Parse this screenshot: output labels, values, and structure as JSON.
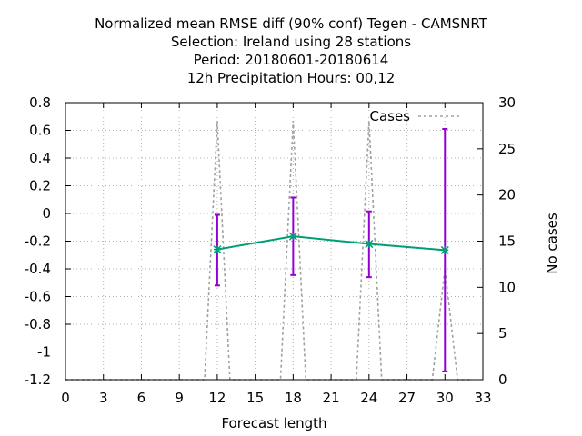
{
  "chart_data": {
    "type": "line",
    "title_lines": [
      "Normalized mean RMSE diff (90% conf) Tegen - CAMSNRT",
      "Selection: Ireland using    28 stations",
      "Period: 20180601-20180614",
      "12h Precipitation   Hours:  00,12"
    ],
    "xlabel": "Forecast length",
    "ylabel": "",
    "y2label": "No cases",
    "xlim": [
      0,
      33
    ],
    "ylim": [
      -1.2,
      0.8
    ],
    "y2lim": [
      0,
      30
    ],
    "xticks": [
      0,
      3,
      6,
      9,
      12,
      15,
      18,
      21,
      24,
      27,
      30,
      33
    ],
    "yticks": [
      -1.2,
      -1,
      -0.8,
      -0.6,
      -0.4,
      -0.2,
      0,
      0.2,
      0.4,
      0.6,
      0.8
    ],
    "ytick_labels": [
      "-1.2",
      "-1",
      "-0.8",
      "-0.6",
      "-0.4",
      "-0.2",
      "0",
      "0.2",
      "0.4",
      "0.6",
      "0.8"
    ],
    "y2ticks": [
      0,
      5,
      10,
      15,
      20,
      25,
      30
    ],
    "grid": true,
    "legend_position": "top-right",
    "series": [
      {
        "name": "",
        "axis": "left",
        "color": "#009e73",
        "x": [
          12,
          18,
          24,
          30
        ],
        "y": [
          -0.26,
          -0.165,
          -0.22,
          -0.265
        ],
        "error_low": [
          -0.52,
          -0.445,
          -0.46,
          -1.14
        ],
        "error_high": [
          -0.01,
          0.115,
          0.015,
          0.61
        ],
        "error_color": "#9400d3"
      },
      {
        "name": "Cases",
        "axis": "right",
        "color": "#a0a0a0",
        "dashed": true,
        "x": [
          0,
          11,
          12,
          13,
          17,
          18,
          19,
          23,
          24,
          25,
          29,
          30,
          31,
          32
        ],
        "y": [
          0,
          0,
          28,
          0,
          0,
          28,
          0,
          0,
          28,
          0,
          0,
          12,
          0,
          0
        ]
      }
    ]
  }
}
